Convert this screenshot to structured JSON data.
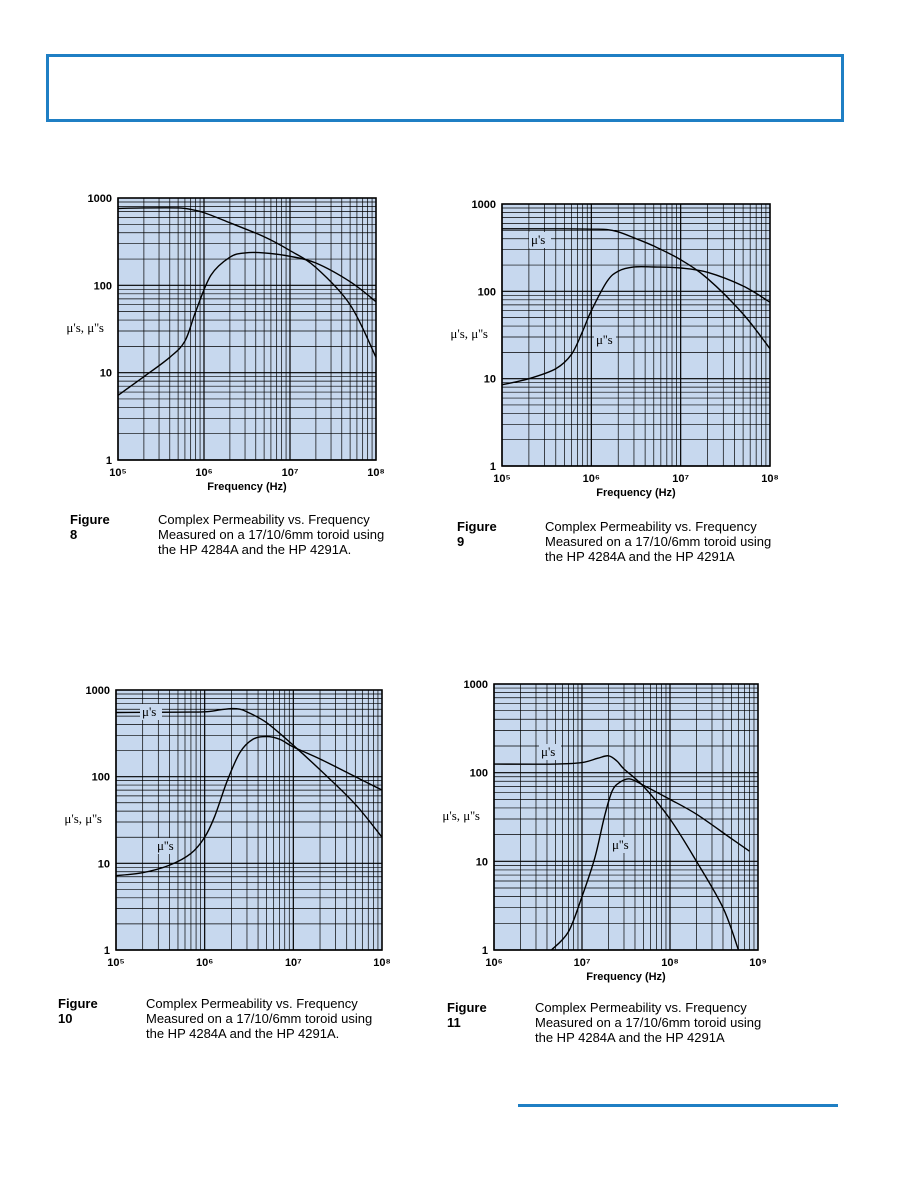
{
  "colors": {
    "accent": "#1f7fc4",
    "plot_bg": "#c7d8ee",
    "grid": "#000000",
    "curve": "#000000"
  },
  "chart_data": [
    {
      "id": "fig8",
      "type": "line",
      "title": "",
      "xlabel": "Frequency (Hz)",
      "ylabel": "μ's, μ''s",
      "xscale": "log",
      "yscale": "log",
      "xlim": [
        100000,
        100000000
      ],
      "ylim": [
        1,
        1000
      ],
      "xtick_labels": [
        "10⁵",
        "10⁶",
        "10⁷",
        "10⁸"
      ],
      "ytick_labels": [
        "1",
        "10",
        "100",
        "1000"
      ],
      "grid": true,
      "series": [
        {
          "name": "μ's",
          "label_text": "",
          "x": [
            100000,
            200000,
            500000,
            700000,
            1000000,
            2000000,
            5000000,
            10000000,
            20000000,
            50000000,
            100000000
          ],
          "y": [
            760,
            770,
            770,
            740,
            680,
            520,
            360,
            250,
            160,
            60,
            15
          ]
        },
        {
          "name": "μ''s",
          "label_text": "",
          "x": [
            100000,
            200000,
            400000,
            600000,
            800000,
            1200000,
            2000000,
            3000000,
            5000000,
            10000000,
            20000000,
            50000000,
            100000000
          ],
          "y": [
            5.5,
            9,
            15,
            23,
            50,
            130,
            210,
            235,
            235,
            215,
            180,
            110,
            65
          ]
        }
      ]
    },
    {
      "id": "fig9",
      "type": "line",
      "title": "",
      "xlabel": "Frequency (Hz)",
      "ylabel": "μ's, μ''s",
      "xscale": "log",
      "yscale": "log",
      "xlim": [
        100000,
        100000000
      ],
      "ylim": [
        1,
        1000
      ],
      "xtick_labels": [
        "10⁵",
        "10⁶",
        "10⁷",
        "10⁸"
      ],
      "ytick_labels": [
        "1",
        "10",
        "100",
        "1000"
      ],
      "grid": true,
      "series": [
        {
          "name": "μ's",
          "label_text": "μ's",
          "x": [
            100000,
            500000,
            1000000,
            1500000,
            2000000,
            3000000,
            5000000,
            10000000,
            20000000,
            50000000,
            100000000
          ],
          "y": [
            520,
            520,
            515,
            510,
            480,
            410,
            330,
            230,
            140,
            55,
            22
          ]
        },
        {
          "name": "μ''s",
          "label_text": "μ''s",
          "x": [
            100000,
            200000,
            400000,
            600000,
            800000,
            1000000,
            1500000,
            2000000,
            3000000,
            5000000,
            10000000,
            20000000,
            50000000,
            100000000
          ],
          "y": [
            8.5,
            10,
            13,
            19,
            35,
            60,
            130,
            170,
            190,
            190,
            185,
            165,
            115,
            75
          ]
        }
      ]
    },
    {
      "id": "fig10",
      "type": "line",
      "title": "",
      "xlabel": "",
      "ylabel": "μ's, μ''s",
      "xscale": "log",
      "yscale": "log",
      "xlim": [
        100000,
        100000000
      ],
      "ylim": [
        1,
        1000
      ],
      "xtick_labels": [
        "10⁵",
        "10⁶",
        "10⁷",
        "10⁸"
      ],
      "ytick_labels": [
        "1",
        "10",
        "100",
        "1000"
      ],
      "grid": true,
      "series": [
        {
          "name": "μ's",
          "label_text": "μ's",
          "x": [
            100000,
            500000,
            1000000,
            1500000,
            2000000,
            2500000,
            3000000,
            5000000,
            10000000,
            20000000,
            50000000,
            100000000
          ],
          "y": [
            550,
            555,
            560,
            590,
            610,
            600,
            560,
            420,
            230,
            120,
            48,
            20
          ]
        },
        {
          "name": "μ''s",
          "label_text": "μ''s",
          "x": [
            100000,
            200000,
            400000,
            700000,
            1000000,
            1300000,
            1800000,
            2500000,
            3500000,
            5000000,
            7000000,
            10000000,
            20000000,
            50000000,
            100000000
          ],
          "y": [
            7.2,
            7.8,
            9.5,
            13,
            20,
            35,
            90,
            190,
            270,
            290,
            270,
            220,
            160,
            100,
            70
          ]
        }
      ]
    },
    {
      "id": "fig11",
      "type": "line",
      "title": "",
      "xlabel": "Frequency (Hz)",
      "ylabel": "μ's, μ''s",
      "xscale": "log",
      "yscale": "log",
      "xlim": [
        1000000,
        1000000000
      ],
      "ylim": [
        1,
        1000
      ],
      "xtick_labels": [
        "10⁶",
        "10⁷",
        "10⁸",
        "10⁹"
      ],
      "ytick_labels": [
        "1",
        "10",
        "100",
        "1000"
      ],
      "grid": true,
      "series": [
        {
          "name": "μ's",
          "label_text": "μ's",
          "x": [
            1000000,
            5000000,
            10000000,
            15000000,
            20000000,
            25000000,
            30000000,
            50000000,
            100000000,
            200000000,
            400000000,
            600000000
          ],
          "y": [
            125,
            125,
            130,
            145,
            155,
            135,
            110,
            70,
            30,
            10,
            3,
            1
          ]
        },
        {
          "name": "μ''s",
          "label_text": "μ''s",
          "x": [
            4500000,
            7000000,
            10000000,
            14000000,
            18000000,
            22000000,
            27000000,
            35000000,
            50000000,
            100000000,
            200000000,
            500000000,
            800000000
          ],
          "y": [
            1,
            1.6,
            4,
            11,
            32,
            62,
            78,
            85,
            72,
            50,
            34,
            18,
            13
          ]
        }
      ]
    }
  ],
  "captions": [
    {
      "figure": "Figure 8",
      "lines": [
        "Complex Permeability vs. Frequency",
        "Measured on a 17/10/6mm toroid using",
        "the HP 4284A and the HP 4291A."
      ]
    },
    {
      "figure": "Figure 9",
      "lines": [
        "Complex Permeability vs. Frequency",
        "Measured on a 17/10/6mm toroid using",
        "the HP 4284A and the HP 4291A"
      ]
    },
    {
      "figure": "Figure 10",
      "lines": [
        "Complex Permeability vs. Frequency",
        "Measured on a 17/10/6mm toroid using",
        "the HP 4284A and the HP 4291A."
      ]
    },
    {
      "figure": "Figure 11",
      "lines": [
        "Complex Permeability vs. Frequency",
        "Measured on a 17/10/6mm toroid using",
        "the HP 4284A and the HP 4291A"
      ]
    }
  ]
}
